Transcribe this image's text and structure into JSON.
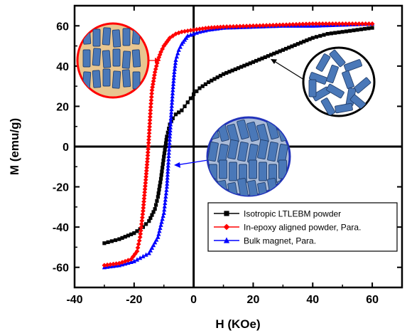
{
  "chart_data": {
    "type": "line",
    "xlabel": "H (KOe)",
    "ylabel": "M (emu/g)",
    "xlim": [
      -40,
      70
    ],
    "ylim": [
      -70,
      70
    ],
    "xticks": [
      -40,
      -20,
      0,
      20,
      40,
      60
    ],
    "yticks": [
      -60,
      -40,
      -20,
      0,
      20,
      40,
      60
    ],
    "grid": false,
    "legend_position": "bottom-right",
    "series": [
      {
        "name": "Isotropic LTLEBM powder",
        "color": "#000000",
        "marker": "square",
        "x": [
          -30,
          -25,
          -20,
          -17,
          -15,
          -13,
          -12,
          -11,
          -10,
          -9,
          -8,
          -7,
          -6,
          -5,
          -4,
          -3,
          -2,
          -1,
          0,
          2,
          5,
          10,
          15,
          20,
          25,
          30,
          35,
          40,
          45,
          50,
          55,
          60
        ],
        "y": [
          -48,
          -46,
          -43,
          -40,
          -37,
          -31,
          -25,
          -16,
          -5,
          5,
          11,
          14,
          16,
          17,
          18,
          20,
          22,
          24,
          26,
          29,
          32,
          36,
          39,
          42,
          45,
          48,
          51,
          54,
          56,
          57,
          58,
          59
        ]
      },
      {
        "name": "In-epoxy aligned powder, Para.",
        "color": "#ff0000",
        "marker": "circle",
        "x": [
          -30,
          -25,
          -21,
          -19,
          -18,
          -17,
          -16,
          -15.5,
          -15,
          -14.5,
          -14,
          -13,
          -12,
          -11,
          -10,
          -9,
          -8,
          -6,
          -4,
          -2,
          0,
          5,
          10,
          20,
          30,
          40,
          50,
          60
        ],
        "y": [
          -59,
          -58,
          -56,
          -52,
          -45,
          -32,
          -15,
          -6,
          5,
          18,
          28,
          37,
          43,
          47,
          50,
          52,
          54,
          56,
          57,
          57.5,
          58,
          59,
          59.5,
          60,
          60.5,
          61,
          61,
          61
        ]
      },
      {
        "name": "Bulk magnet, Para.",
        "color": "#0000ff",
        "marker": "triangle",
        "x": [
          -30,
          -25,
          -20,
          -15,
          -12,
          -10,
          -9,
          -8.5,
          -8,
          -7.5,
          -7,
          -6.5,
          -6,
          -5,
          -4,
          -3,
          -2,
          0,
          2,
          5,
          10,
          20,
          30,
          40,
          50,
          60
        ],
        "y": [
          -60,
          -59,
          -57,
          -53,
          -45,
          -33,
          -20,
          -8,
          5,
          17,
          28,
          37,
          43,
          48,
          51,
          53,
          55,
          56,
          57,
          58,
          59,
          59.5,
          60,
          60,
          60.5,
          61
        ]
      }
    ]
  },
  "legend": {
    "entries": [
      "Isotropic LTLEBM powder",
      "In-epoxy aligned powder, Para.",
      "Bulk magnet, Para."
    ]
  },
  "insets": [
    {
      "border_color": "#ff0000",
      "fill_color": "#e8c690",
      "grain_color": "#4a78b8"
    },
    {
      "border_color": "#000000",
      "fill_color": "#ffffff",
      "grain_color": "#4a78b8"
    },
    {
      "border_color": "#2233bb",
      "fill_color": "#aabbd8",
      "grain_color": "#4a78b8"
    }
  ]
}
